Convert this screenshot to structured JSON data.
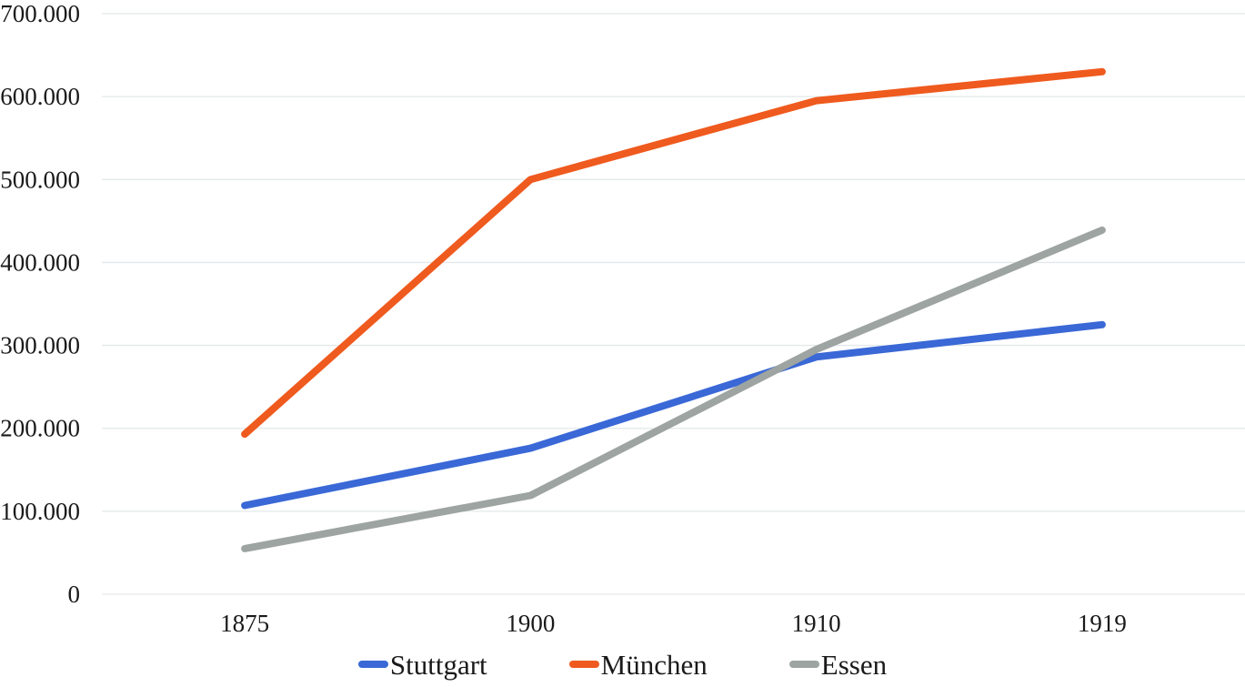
{
  "chart": {
    "background_color": "#ffffff",
    "grid_color": "#e3e8ea",
    "text_color": "#1a1a1a"
  },
  "chart_data": {
    "type": "line",
    "title": "",
    "xlabel": "",
    "ylabel": "",
    "categories": [
      "1875",
      "1900",
      "1910",
      "1919"
    ],
    "series": [
      {
        "name": "Stuttgart",
        "color": "#3a68d6",
        "values": [
          107000,
          176000,
          286000,
          325000
        ]
      },
      {
        "name": "München",
        "color": "#ef5a1e",
        "values": [
          193000,
          500000,
          595000,
          630000
        ]
      },
      {
        "name": "Essen",
        "color": "#9da4a1",
        "values": [
          55000,
          119000,
          295000,
          439000
        ]
      }
    ],
    "ylim": [
      0,
      700000
    ],
    "ytick_interval": 100000,
    "ytick_labels": [
      "0",
      "100.000",
      "200.000",
      "300.000",
      "400.000",
      "500.000",
      "600.000",
      "700.000"
    ],
    "grid": true,
    "legend_position": "bottom"
  }
}
